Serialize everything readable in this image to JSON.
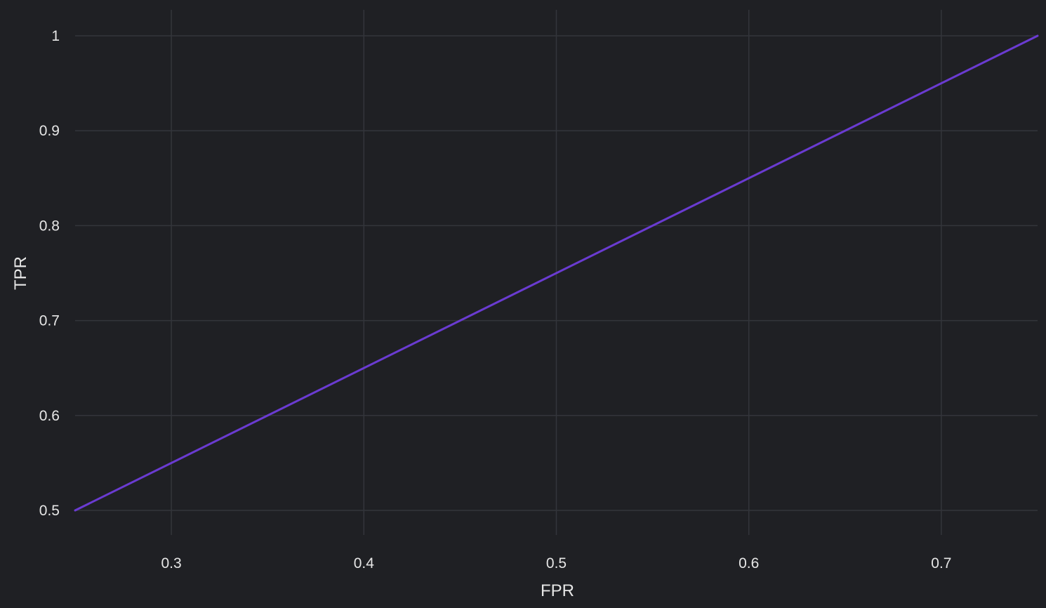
{
  "chart_data": {
    "type": "line",
    "title": "",
    "xlabel": "FPR",
    "ylabel": "TPR",
    "xlim": [
      0.25,
      0.75
    ],
    "ylim": [
      0.5,
      1.0
    ],
    "x_ticks": [
      0.3,
      0.4,
      0.5,
      0.6,
      0.7
    ],
    "y_ticks": [
      0.5,
      0.6,
      0.7,
      0.8,
      0.9,
      1.0
    ],
    "x_tick_labels": [
      "0.3",
      "0.4",
      "0.5",
      "0.6",
      "0.7"
    ],
    "y_tick_labels": [
      "0.5",
      "0.6",
      "0.7",
      "0.8",
      "0.9",
      "1"
    ],
    "grid": true,
    "series": [
      {
        "x": [
          0.25,
          0.75
        ],
        "y": [
          0.5,
          1.0
        ],
        "color": "#6a3bd1"
      }
    ]
  },
  "colors": {
    "background": "#1f2024",
    "grid": "#33353b",
    "text": "#e6e6e6",
    "line": "#6a3bd1"
  }
}
